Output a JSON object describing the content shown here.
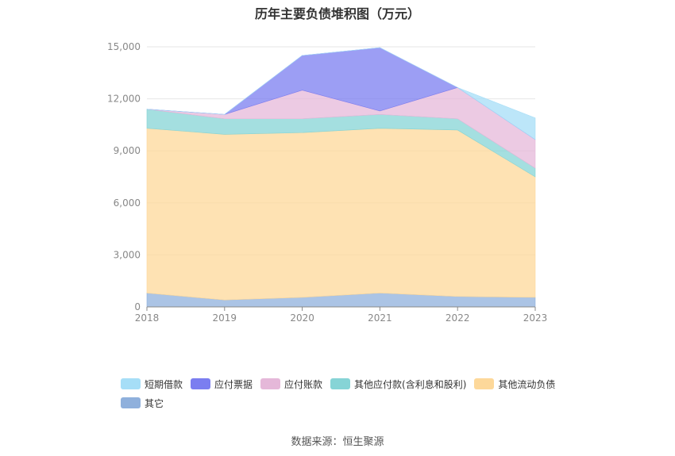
{
  "title": "历年主要负债堆积图（万元）",
  "source": "数据来源：恒生聚源",
  "chart_data": {
    "type": "area",
    "stacked": true,
    "title": "历年主要负债堆积图（万元）",
    "categories": [
      "2018",
      "2019",
      "2020",
      "2021",
      "2022",
      "2023"
    ],
    "ylim": [
      0,
      15000
    ],
    "yticks": [
      0,
      3000,
      6000,
      9000,
      12000,
      15000
    ],
    "ytick_labels": [
      "0",
      "3,000",
      "6,000",
      "9,000",
      "12,000",
      "15,000"
    ],
    "grid": true,
    "legend_position": "bottom",
    "series": [
      {
        "name": "其它",
        "color": "#8fb0dc",
        "values": [
          800,
          400,
          550,
          800,
          600,
          550
        ]
      },
      {
        "name": "其他流动负债",
        "color": "#fdd89a",
        "values": [
          9500,
          9550,
          9500,
          9500,
          9600,
          6950
        ]
      },
      {
        "name": "其他应付款(含利息和股利)",
        "color": "#86d4d6",
        "values": [
          1100,
          900,
          800,
          800,
          650,
          500
        ]
      },
      {
        "name": "应付账款",
        "color": "#e5b8d9",
        "values": [
          0,
          250,
          1650,
          200,
          1800,
          1650
        ]
      },
      {
        "name": "应付票据",
        "color": "#7b7ef0",
        "values": [
          0,
          0,
          2000,
          3650,
          0,
          0
        ]
      },
      {
        "name": "短期借款",
        "color": "#a6def7",
        "values": [
          0,
          0,
          0,
          0,
          0,
          1250
        ]
      }
    ]
  },
  "legend": [
    {
      "name": "短期借款",
      "color": "#a6def7"
    },
    {
      "name": "应付票据",
      "color": "#7b7ef0"
    },
    {
      "name": "应付账款",
      "color": "#e5b8d9"
    },
    {
      "name": "其他应付款(含利息和股利)",
      "color": "#86d4d6"
    },
    {
      "name": "其他流动负债",
      "color": "#fdd89a"
    },
    {
      "name": "其它",
      "color": "#8fb0dc"
    }
  ]
}
